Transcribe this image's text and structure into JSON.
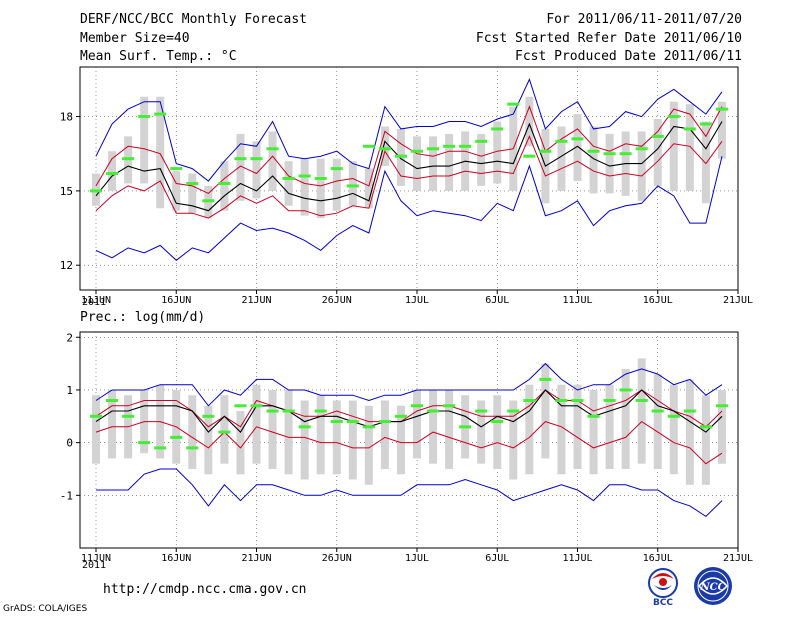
{
  "header": {
    "title": "DERF/NCC/BCC Monthly Forecast",
    "member_size": "Member Size=40",
    "variable": "Mean Surf. Temp.: °C",
    "period": "For 2011/06/11-2011/07/20",
    "started": "Fcst Started Refer Date 2011/06/10",
    "produced": "Fcst Produced Date 2011/06/11"
  },
  "footer": {
    "url": "http://cmdp.ncc.cma.gov.cn",
    "grads": "GrADS: COLA/IGES",
    "logo1_text": "BCC",
    "logo2_text": "NCC"
  },
  "colors": {
    "envelope": "#0000cc",
    "spread": "#cc0022",
    "mean": "#000000",
    "box": "#d3d3d3",
    "observed": "#44ee33"
  },
  "chart_data": [
    {
      "type": "line",
      "title": "Mean Surf. Temp.: °C",
      "x_tick_labels": [
        "11JUN",
        "16JUN",
        "21JUN",
        "26JUN",
        "1JUL",
        "6JUL",
        "11JUL",
        "16JUL",
        "21JUL"
      ],
      "year_label": "2011",
      "ylim": [
        11,
        20
      ],
      "y_ticks": [
        12,
        15,
        18
      ],
      "days": 40,
      "series": [
        {
          "name": "max",
          "values": [
            16.4,
            17.7,
            18.3,
            18.6,
            18.6,
            16.1,
            15.9,
            15.4,
            16.2,
            16.9,
            16.8,
            17.8,
            16.4,
            16.3,
            16.4,
            16.6,
            16.1,
            15.9,
            18.4,
            17.5,
            17.6,
            17.6,
            17.8,
            17.8,
            17.6,
            17.9,
            18.1,
            19.5,
            17.5,
            18.2,
            18.6,
            17.5,
            17.6,
            18.2,
            18.0,
            18.7,
            19.1,
            18.6,
            18.1,
            19.0
          ]
        },
        {
          "name": "upper",
          "values": [
            15.2,
            16.3,
            16.8,
            16.7,
            16.5,
            15.3,
            15.2,
            14.9,
            15.5,
            16.0,
            15.7,
            16.4,
            15.6,
            15.3,
            15.2,
            15.4,
            15.5,
            15.2,
            17.4,
            16.9,
            16.5,
            16.4,
            16.6,
            16.6,
            16.4,
            16.6,
            16.7,
            18.4,
            16.6,
            17.1,
            17.5,
            16.8,
            16.6,
            16.9,
            16.8,
            17.4,
            18.3,
            18.1,
            17.2,
            18.4
          ]
        },
        {
          "name": "mean",
          "values": [
            14.8,
            15.6,
            16.0,
            15.8,
            15.9,
            14.5,
            14.4,
            14.2,
            14.8,
            15.3,
            15.0,
            15.6,
            14.9,
            14.7,
            14.6,
            14.7,
            14.9,
            14.6,
            17.0,
            16.3,
            15.9,
            16.0,
            16.0,
            16.2,
            16.1,
            16.2,
            16.1,
            17.7,
            16.0,
            16.4,
            16.8,
            16.3,
            16.0,
            16.1,
            16.1,
            16.7,
            17.6,
            17.5,
            16.7,
            17.8
          ]
        },
        {
          "name": "lower",
          "values": [
            14.2,
            14.8,
            15.2,
            15.0,
            15.4,
            14.1,
            14.1,
            13.9,
            14.3,
            14.8,
            14.5,
            14.8,
            14.2,
            14.2,
            14.0,
            14.1,
            14.4,
            14.3,
            16.6,
            15.6,
            15.5,
            15.6,
            15.6,
            15.8,
            15.7,
            15.8,
            15.7,
            17.2,
            15.6,
            15.9,
            16.2,
            15.8,
            15.6,
            15.7,
            15.6,
            16.2,
            16.9,
            16.8,
            16.1,
            17.0
          ]
        },
        {
          "name": "min",
          "values": [
            12.6,
            12.3,
            12.7,
            12.5,
            12.8,
            12.2,
            12.7,
            12.5,
            13.1,
            13.7,
            13.4,
            13.5,
            13.3,
            13.0,
            12.6,
            13.2,
            13.6,
            13.3,
            15.8,
            14.6,
            14.0,
            14.2,
            14.1,
            14.0,
            13.8,
            14.5,
            14.2,
            16.0,
            14.0,
            14.2,
            14.6,
            13.6,
            14.2,
            14.4,
            14.5,
            15.2,
            14.8,
            13.7,
            13.7,
            16.4
          ]
        },
        {
          "name": "observed",
          "values": [
            15.0,
            15.7,
            16.3,
            18.0,
            18.1,
            15.9,
            15.3,
            14.6,
            15.3,
            16.3,
            16.3,
            16.7,
            15.5,
            15.6,
            15.5,
            15.9,
            15.2,
            16.8,
            16.7,
            16.4,
            16.6,
            16.7,
            16.8,
            16.8,
            17.0,
            17.5,
            18.5,
            16.4,
            16.6,
            17.0,
            17.1,
            16.6,
            16.5,
            16.5,
            16.7,
            17.2,
            18.0,
            17.5,
            17.7,
            18.3
          ]
        }
      ],
      "box_ranges": [
        [
          14.4,
          15.7
        ],
        [
          15.0,
          16.6
        ],
        [
          15.3,
          17.2
        ],
        [
          15.3,
          18.8
        ],
        [
          14.3,
          18.8
        ],
        [
          14.2,
          15.8
        ],
        [
          14.1,
          15.7
        ],
        [
          13.9,
          15.2
        ],
        [
          14.2,
          16.2
        ],
        [
          14.6,
          17.3
        ],
        [
          14.7,
          17.0
        ],
        [
          15.0,
          17.4
        ],
        [
          14.4,
          16.2
        ],
        [
          14.0,
          16.3
        ],
        [
          13.9,
          16.3
        ],
        [
          14.2,
          16.3
        ],
        [
          14.4,
          16.2
        ],
        [
          14.3,
          15.9
        ],
        [
          16.0,
          17.6
        ],
        [
          15.2,
          17.5
        ],
        [
          15.0,
          17.2
        ],
        [
          15.0,
          17.2
        ],
        [
          15.0,
          17.3
        ],
        [
          15.0,
          17.4
        ],
        [
          15.2,
          17.3
        ],
        [
          15.3,
          17.8
        ],
        [
          15.0,
          18.4
        ],
        [
          16.8,
          18.8
        ],
        [
          14.5,
          17.5
        ],
        [
          15.0,
          17.6
        ],
        [
          15.4,
          18.1
        ],
        [
          14.9,
          17.6
        ],
        [
          14.9,
          17.3
        ],
        [
          14.8,
          17.4
        ],
        [
          14.6,
          17.4
        ],
        [
          15.2,
          17.9
        ],
        [
          15.0,
          18.6
        ],
        [
          15.0,
          18.5
        ],
        [
          14.5,
          17.8
        ],
        [
          16.3,
          18.6
        ]
      ]
    },
    {
      "type": "line",
      "title": "Prec.: log(mm/d)",
      "x_tick_labels": [
        "11JUN",
        "16JUN",
        "21JUN",
        "26JUN",
        "1JUL",
        "6JUL",
        "11JUL",
        "16JUL",
        "21JUL"
      ],
      "year_label": "2011",
      "ylim": [
        -2,
        2.1
      ],
      "y_ticks": [
        -1,
        0,
        1,
        2
      ],
      "days": 40,
      "series": [
        {
          "name": "max",
          "values": [
            0.8,
            1.0,
            1.0,
            1.0,
            1.1,
            1.1,
            1.1,
            0.7,
            1.0,
            0.9,
            1.2,
            1.2,
            1.0,
            1.0,
            0.9,
            0.9,
            0.9,
            0.8,
            0.9,
            0.9,
            1.0,
            1.0,
            1.0,
            1.0,
            1.0,
            1.0,
            1.0,
            1.2,
            1.5,
            1.2,
            1.0,
            1.1,
            1.1,
            1.3,
            1.4,
            1.3,
            1.1,
            1.2,
            0.9,
            1.1
          ]
        },
        {
          "name": "upper",
          "values": [
            0.5,
            0.7,
            0.7,
            0.8,
            0.8,
            0.8,
            0.6,
            0.3,
            0.5,
            0.3,
            0.8,
            0.7,
            0.6,
            0.5,
            0.5,
            0.6,
            0.5,
            0.4,
            0.4,
            0.4,
            0.6,
            0.7,
            0.7,
            0.6,
            0.5,
            0.5,
            0.5,
            0.7,
            1.0,
            0.8,
            0.8,
            0.6,
            0.7,
            0.8,
            1.0,
            0.8,
            0.6,
            0.5,
            0.3,
            0.6
          ]
        },
        {
          "name": "mean",
          "values": [
            0.4,
            0.6,
            0.6,
            0.7,
            0.7,
            0.7,
            0.6,
            0.2,
            0.5,
            0.2,
            0.7,
            0.7,
            0.6,
            0.4,
            0.5,
            0.5,
            0.4,
            0.3,
            0.4,
            0.4,
            0.5,
            0.6,
            0.6,
            0.5,
            0.3,
            0.5,
            0.4,
            0.6,
            1.0,
            0.7,
            0.7,
            0.5,
            0.6,
            0.7,
            1.0,
            0.7,
            0.6,
            0.4,
            0.2,
            0.5
          ]
        },
        {
          "name": "lower",
          "values": [
            0.2,
            0.3,
            0.3,
            0.4,
            0.4,
            0.3,
            0.1,
            -0.1,
            0.2,
            -0.1,
            0.3,
            0.2,
            0.1,
            0.1,
            0.0,
            0.0,
            -0.1,
            -0.1,
            0.1,
            0.0,
            0.0,
            0.2,
            0.1,
            0.0,
            -0.1,
            0.0,
            -0.1,
            0.1,
            0.4,
            0.3,
            0.1,
            -0.1,
            0.0,
            0.1,
            0.4,
            0.2,
            0.0,
            -0.1,
            -0.4,
            -0.2
          ]
        },
        {
          "name": "min",
          "values": [
            -0.9,
            -0.9,
            -0.9,
            -0.6,
            -0.5,
            -0.5,
            -0.8,
            -1.2,
            -0.8,
            -1.1,
            -0.8,
            -0.8,
            -0.9,
            -1.0,
            -1.0,
            -0.9,
            -1.0,
            -1.0,
            -1.0,
            -1.0,
            -0.8,
            -0.8,
            -0.8,
            -0.7,
            -0.8,
            -0.9,
            -1.1,
            -1.0,
            -0.9,
            -0.8,
            -0.9,
            -1.1,
            -0.8,
            -0.8,
            -0.9,
            -0.9,
            -1.1,
            -1.2,
            -1.4,
            -1.1
          ]
        },
        {
          "name": "observed",
          "values": [
            0.5,
            0.8,
            0.5,
            0.0,
            -0.1,
            0.1,
            -0.1,
            0.5,
            0.2,
            0.7,
            0.7,
            0.6,
            0.6,
            0.3,
            0.6,
            0.4,
            0.4,
            0.3,
            0.4,
            0.5,
            0.7,
            0.6,
            0.7,
            0.3,
            0.6,
            0.4,
            0.6,
            0.8,
            1.2,
            0.8,
            0.8,
            0.5,
            0.8,
            1.0,
            0.8,
            0.6,
            0.5,
            0.6,
            0.3,
            0.7
          ]
        }
      ],
      "box_ranges": [
        [
          -0.4,
          0.9
        ],
        [
          -0.3,
          1.0
        ],
        [
          -0.3,
          0.9
        ],
        [
          -0.2,
          1.0
        ],
        [
          -0.3,
          1.1
        ],
        [
          -0.4,
          1.0
        ],
        [
          -0.5,
          0.9
        ],
        [
          -0.6,
          0.7
        ],
        [
          -0.4,
          0.9
        ],
        [
          -0.6,
          0.6
        ],
        [
          -0.4,
          1.1
        ],
        [
          -0.5,
          1.0
        ],
        [
          -0.6,
          1.0
        ],
        [
          -0.7,
          0.8
        ],
        [
          -0.6,
          0.9
        ],
        [
          -0.6,
          0.8
        ],
        [
          -0.7,
          0.8
        ],
        [
          -0.8,
          0.7
        ],
        [
          -0.5,
          0.8
        ],
        [
          -0.6,
          0.7
        ],
        [
          -0.3,
          1.0
        ],
        [
          -0.4,
          1.0
        ],
        [
          -0.5,
          1.0
        ],
        [
          -0.3,
          0.9
        ],
        [
          -0.4,
          0.8
        ],
        [
          -0.5,
          0.9
        ],
        [
          -0.7,
          0.8
        ],
        [
          -0.6,
          1.1
        ],
        [
          -0.3,
          1.5
        ],
        [
          -0.6,
          1.1
        ],
        [
          -0.5,
          1.1
        ],
        [
          -0.6,
          1.0
        ],
        [
          -0.5,
          1.1
        ],
        [
          -0.5,
          1.4
        ],
        [
          -0.4,
          1.6
        ],
        [
          -0.5,
          1.3
        ],
        [
          -0.6,
          1.1
        ],
        [
          -0.8,
          1.2
        ],
        [
          -0.8,
          0.9
        ],
        [
          -0.4,
          1.0
        ]
      ]
    }
  ]
}
